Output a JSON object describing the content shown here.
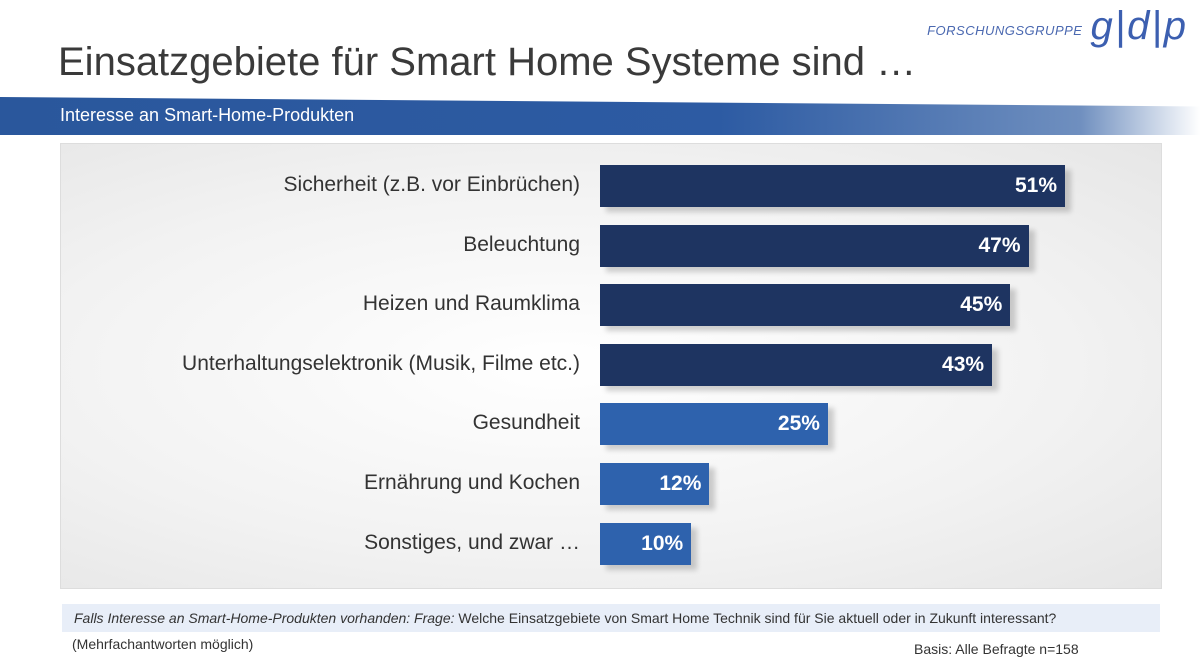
{
  "logo": {
    "text": "FORSCHUNGSGRUPPE",
    "mark": "g|d|p"
  },
  "title": "Einsatzgebiete für Smart Home Systeme sind …",
  "subtitle": "Interesse an Smart-Home-Produkten",
  "chart_data": {
    "type": "bar",
    "orientation": "horizontal",
    "categories": [
      "Sicherheit (z.B. vor Einbrüchen)",
      "Beleuchtung",
      "Heizen und Raumklima",
      "Unterhaltungselektronik (Musik, Filme etc.)",
      "Gesundheit",
      "Ernährung und Kochen",
      "Sonstiges, und zwar …"
    ],
    "values": [
      51,
      47,
      45,
      43,
      25,
      12,
      10
    ],
    "labels": [
      "51%",
      "47%",
      "45%",
      "43%",
      "25%",
      "12%",
      "10%"
    ],
    "colors": [
      "#1e3461",
      "#1e3461",
      "#1e3461",
      "#1e3461",
      "#2e62ad",
      "#2e62ad",
      "#2e62ad"
    ],
    "unit": "%",
    "grid": false
  },
  "footer": {
    "question_italic": "Falls Interesse an Smart-Home-Produkten vorhanden: Frage:",
    "question": " Welche Einsatzgebiete von Smart Home Technik sind für Sie aktuell oder in Zukunft interessant?",
    "note": "(Mehrfachantworten möglich)",
    "basis": "Basis: Alle Befragte n=158"
  }
}
